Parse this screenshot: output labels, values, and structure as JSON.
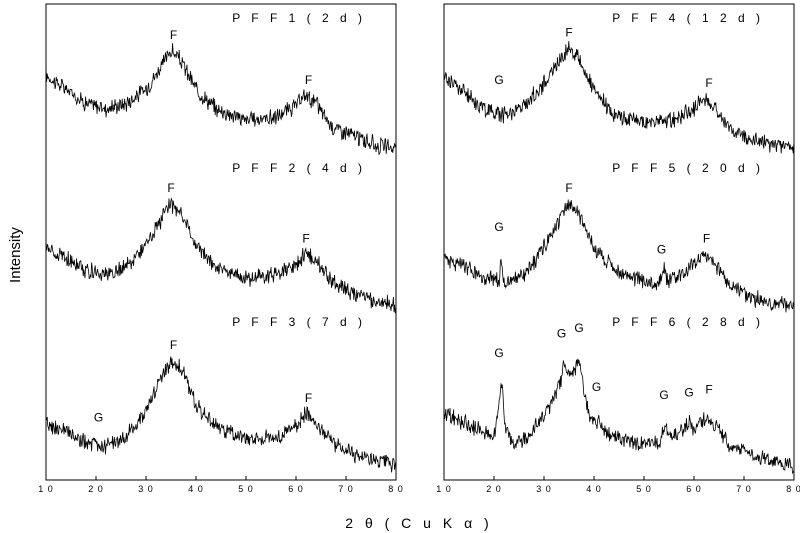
{
  "chart_data": {
    "type": "line",
    "layout": "two columns of three stacked XRD patterns",
    "xlabel": "2 θ ( C u K α )",
    "ylabel": "Intensity",
    "xlim": [
      10,
      80
    ],
    "xticks": [
      "1 0",
      "2 0",
      "3 0",
      "4 0",
      "5 0",
      "6 0",
      "7 0",
      "8 0"
    ],
    "grid": false,
    "columns": [
      {
        "column": "left",
        "panels": [
          {
            "label": "P F F 1 ( 2 d )",
            "series": [
              {
                "x": 10,
                "y": 0.72
              },
              {
                "x": 14,
                "y": 0.62
              },
              {
                "x": 18,
                "y": 0.52
              },
              {
                "x": 22,
                "y": 0.48
              },
              {
                "x": 26,
                "y": 0.52
              },
              {
                "x": 30,
                "y": 0.62
              },
              {
                "x": 33,
                "y": 0.78
              },
              {
                "x": 35,
                "y": 0.9
              },
              {
                "x": 37,
                "y": 0.82
              },
              {
                "x": 40,
                "y": 0.62
              },
              {
                "x": 44,
                "y": 0.48
              },
              {
                "x": 50,
                "y": 0.4
              },
              {
                "x": 56,
                "y": 0.42
              },
              {
                "x": 60,
                "y": 0.5
              },
              {
                "x": 62,
                "y": 0.58
              },
              {
                "x": 64,
                "y": 0.52
              },
              {
                "x": 67,
                "y": 0.36
              },
              {
                "x": 72,
                "y": 0.28
              },
              {
                "x": 76,
                "y": 0.22
              },
              {
                "x": 80,
                "y": 0.2
              }
            ],
            "peaks": [
              {
                "x": 35.5,
                "y": 0.92,
                "text": "F"
              },
              {
                "x": 62.5,
                "y": 0.6,
                "text": "F"
              }
            ]
          },
          {
            "label": "P F F 2 ( 4 d )",
            "series": [
              {
                "x": 10,
                "y": 0.55
              },
              {
                "x": 14,
                "y": 0.48
              },
              {
                "x": 18,
                "y": 0.4
              },
              {
                "x": 22,
                "y": 0.36
              },
              {
                "x": 26,
                "y": 0.42
              },
              {
                "x": 30,
                "y": 0.58
              },
              {
                "x": 33,
                "y": 0.76
              },
              {
                "x": 35,
                "y": 0.88
              },
              {
                "x": 37,
                "y": 0.8
              },
              {
                "x": 40,
                "y": 0.58
              },
              {
                "x": 44,
                "y": 0.42
              },
              {
                "x": 50,
                "y": 0.34
              },
              {
                "x": 56,
                "y": 0.36
              },
              {
                "x": 60,
                "y": 0.44
              },
              {
                "x": 62,
                "y": 0.52
              },
              {
                "x": 64,
                "y": 0.46
              },
              {
                "x": 67,
                "y": 0.32
              },
              {
                "x": 72,
                "y": 0.22
              },
              {
                "x": 76,
                "y": 0.17
              },
              {
                "x": 80,
                "y": 0.15
              }
            ],
            "peaks": [
              {
                "x": 35.0,
                "y": 0.9,
                "text": "F"
              },
              {
                "x": 62.0,
                "y": 0.54,
                "text": "F"
              }
            ]
          },
          {
            "label": "P F F 3 ( 7 d )",
            "series": [
              {
                "x": 10,
                "y": 0.4
              },
              {
                "x": 14,
                "y": 0.34
              },
              {
                "x": 18,
                "y": 0.26
              },
              {
                "x": 20,
                "y": 0.25
              },
              {
                "x": 22,
                "y": 0.24
              },
              {
                "x": 26,
                "y": 0.3
              },
              {
                "x": 30,
                "y": 0.5
              },
              {
                "x": 33,
                "y": 0.72
              },
              {
                "x": 35,
                "y": 0.86
              },
              {
                "x": 37,
                "y": 0.8
              },
              {
                "x": 40,
                "y": 0.54
              },
              {
                "x": 44,
                "y": 0.38
              },
              {
                "x": 50,
                "y": 0.3
              },
              {
                "x": 56,
                "y": 0.3
              },
              {
                "x": 60,
                "y": 0.38
              },
              {
                "x": 62,
                "y": 0.48
              },
              {
                "x": 64,
                "y": 0.42
              },
              {
                "x": 67,
                "y": 0.28
              },
              {
                "x": 72,
                "y": 0.18
              },
              {
                "x": 76,
                "y": 0.13
              },
              {
                "x": 80,
                "y": 0.1
              }
            ],
            "peaks": [
              {
                "x": 20.5,
                "y": 0.36,
                "text": "G"
              },
              {
                "x": 35.5,
                "y": 0.88,
                "text": "F"
              },
              {
                "x": 62.5,
                "y": 0.5,
                "text": "F"
              }
            ]
          }
        ]
      },
      {
        "column": "right",
        "panels": [
          {
            "label": "P F F 4 ( 1 2 d )",
            "series": [
              {
                "x": 10,
                "y": 0.72
              },
              {
                "x": 14,
                "y": 0.6
              },
              {
                "x": 18,
                "y": 0.48
              },
              {
                "x": 22,
                "y": 0.44
              },
              {
                "x": 26,
                "y": 0.5
              },
              {
                "x": 30,
                "y": 0.66
              },
              {
                "x": 33,
                "y": 0.82
              },
              {
                "x": 35,
                "y": 0.92
              },
              {
                "x": 37,
                "y": 0.84
              },
              {
                "x": 40,
                "y": 0.6
              },
              {
                "x": 44,
                "y": 0.44
              },
              {
                "x": 50,
                "y": 0.38
              },
              {
                "x": 56,
                "y": 0.4
              },
              {
                "x": 60,
                "y": 0.48
              },
              {
                "x": 62,
                "y": 0.56
              },
              {
                "x": 64,
                "y": 0.5
              },
              {
                "x": 67,
                "y": 0.34
              },
              {
                "x": 72,
                "y": 0.26
              },
              {
                "x": 76,
                "y": 0.22
              },
              {
                "x": 80,
                "y": 0.2
              }
            ],
            "peaks": [
              {
                "x": 21.0,
                "y": 0.6,
                "text": "G"
              },
              {
                "x": 35.0,
                "y": 0.94,
                "text": "F"
              },
              {
                "x": 63.0,
                "y": 0.58,
                "text": "F"
              }
            ]
          },
          {
            "label": "P F F 5 ( 2 0 d )",
            "series": [
              {
                "x": 10,
                "y": 0.5
              },
              {
                "x": 14,
                "y": 0.42
              },
              {
                "x": 18,
                "y": 0.34
              },
              {
                "x": 21,
                "y": 0.32
              },
              {
                "x": 21.5,
                "y": 0.5
              },
              {
                "x": 22,
                "y": 0.3
              },
              {
                "x": 26,
                "y": 0.36
              },
              {
                "x": 30,
                "y": 0.56
              },
              {
                "x": 33,
                "y": 0.76
              },
              {
                "x": 35,
                "y": 0.86
              },
              {
                "x": 37,
                "y": 0.8
              },
              {
                "x": 40,
                "y": 0.56
              },
              {
                "x": 44,
                "y": 0.4
              },
              {
                "x": 50,
                "y": 0.32
              },
              {
                "x": 53,
                "y": 0.3
              },
              {
                "x": 54,
                "y": 0.4
              },
              {
                "x": 55,
                "y": 0.32
              },
              {
                "x": 58,
                "y": 0.38
              },
              {
                "x": 60,
                "y": 0.44
              },
              {
                "x": 62,
                "y": 0.52
              },
              {
                "x": 64,
                "y": 0.46
              },
              {
                "x": 67,
                "y": 0.3
              },
              {
                "x": 72,
                "y": 0.2
              },
              {
                "x": 76,
                "y": 0.16
              },
              {
                "x": 80,
                "y": 0.14
              }
            ],
            "peaks": [
              {
                "x": 21.0,
                "y": 0.62,
                "text": "G"
              },
              {
                "x": 35.0,
                "y": 0.9,
                "text": "F"
              },
              {
                "x": 53.5,
                "y": 0.46,
                "text": "G"
              },
              {
                "x": 62.5,
                "y": 0.54,
                "text": "F"
              }
            ]
          },
          {
            "label": "P F F 6 ( 2 8 d )",
            "series": [
              {
                "x": 10,
                "y": 0.48
              },
              {
                "x": 14,
                "y": 0.4
              },
              {
                "x": 18,
                "y": 0.34
              },
              {
                "x": 20,
                "y": 0.32
              },
              {
                "x": 21,
                "y": 0.56
              },
              {
                "x": 21.6,
                "y": 0.7
              },
              {
                "x": 22.3,
                "y": 0.36
              },
              {
                "x": 24,
                "y": 0.26
              },
              {
                "x": 27,
                "y": 0.32
              },
              {
                "x": 30,
                "y": 0.46
              },
              {
                "x": 32,
                "y": 0.58
              },
              {
                "x": 33.5,
                "y": 0.72
              },
              {
                "x": 34,
                "y": 0.84
              },
              {
                "x": 34.5,
                "y": 0.74
              },
              {
                "x": 35.5,
                "y": 0.76
              },
              {
                "x": 36.5,
                "y": 0.8
              },
              {
                "x": 37.2,
                "y": 0.86
              },
              {
                "x": 38,
                "y": 0.62
              },
              {
                "x": 39,
                "y": 0.48
              },
              {
                "x": 40.5,
                "y": 0.38
              },
              {
                "x": 41,
                "y": 0.44
              },
              {
                "x": 42,
                "y": 0.34
              },
              {
                "x": 46,
                "y": 0.28
              },
              {
                "x": 50,
                "y": 0.26
              },
              {
                "x": 53,
                "y": 0.26
              },
              {
                "x": 54,
                "y": 0.38
              },
              {
                "x": 55,
                "y": 0.3
              },
              {
                "x": 57,
                "y": 0.32
              },
              {
                "x": 59,
                "y": 0.42
              },
              {
                "x": 60,
                "y": 0.36
              },
              {
                "x": 62,
                "y": 0.44
              },
              {
                "x": 64,
                "y": 0.4
              },
              {
                "x": 67,
                "y": 0.26
              },
              {
                "x": 72,
                "y": 0.18
              },
              {
                "x": 76,
                "y": 0.12
              },
              {
                "x": 80,
                "y": 0.1
              }
            ],
            "peaks": [
              {
                "x": 21.0,
                "y": 0.82,
                "text": "G"
              },
              {
                "x": 33.5,
                "y": 0.96,
                "text": "G"
              },
              {
                "x": 37.0,
                "y": 1.0,
                "text": "G"
              },
              {
                "x": 40.5,
                "y": 0.58,
                "text": "G"
              },
              {
                "x": 54.0,
                "y": 0.52,
                "text": "G"
              },
              {
                "x": 59.0,
                "y": 0.54,
                "text": "G"
              },
              {
                "x": 63.0,
                "y": 0.56,
                "text": "F"
              }
            ]
          }
        ]
      }
    ]
  }
}
